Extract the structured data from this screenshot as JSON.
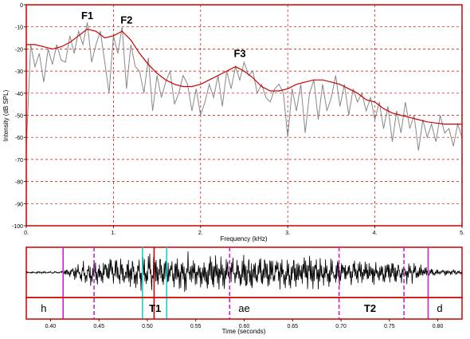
{
  "chart_data": [
    {
      "type": "line",
      "xlabel": "Frequency (kHz)",
      "ylabel": "Intensity (dB SPL)",
      "xlim": [
        0,
        5
      ],
      "ylim": [
        -100,
        0
      ],
      "x_ticks": [
        "0.",
        "1.",
        "2.",
        "3.",
        "4.",
        "5."
      ],
      "y_ticks": [
        "0",
        "-10",
        "-20",
        "-30",
        "-40",
        "-50",
        "-60",
        "-70",
        "-80",
        "-90",
        "-100"
      ],
      "grid": true,
      "colors": {
        "frame": "#cc0000",
        "grid": "#cc0000",
        "spectrum": "#888888",
        "envelope": "#cc0000"
      },
      "series": [
        {
          "role": "spectrum",
          "x": [
            0.0,
            0.05,
            0.1,
            0.15,
            0.2,
            0.25,
            0.3,
            0.35,
            0.4,
            0.45,
            0.5,
            0.55,
            0.6,
            0.65,
            0.7,
            0.75,
            0.8,
            0.85,
            0.9,
            0.95,
            1.0,
            1.05,
            1.1,
            1.15,
            1.2,
            1.25,
            1.3,
            1.35,
            1.4,
            1.45,
            1.5,
            1.55,
            1.6,
            1.65,
            1.7,
            1.75,
            1.8,
            1.85,
            1.9,
            1.95,
            2.0,
            2.05,
            2.1,
            2.15,
            2.2,
            2.25,
            2.3,
            2.35,
            2.4,
            2.45,
            2.5,
            2.55,
            2.6,
            2.65,
            2.7,
            2.75,
            2.8,
            2.85,
            2.9,
            2.95,
            3.0,
            3.05,
            3.1,
            3.15,
            3.2,
            3.25,
            3.3,
            3.35,
            3.4,
            3.45,
            3.5,
            3.55,
            3.6,
            3.65,
            3.7,
            3.75,
            3.8,
            3.85,
            3.9,
            3.95,
            4.0,
            4.05,
            4.1,
            4.15,
            4.2,
            4.25,
            4.3,
            4.35,
            4.4,
            4.45,
            4.5,
            4.55,
            4.6,
            4.65,
            4.7,
            4.75,
            4.8,
            4.85,
            4.9,
            4.95,
            5.0
          ],
          "values": [
            -65,
            -18,
            -28,
            -22,
            -35,
            -20,
            -27,
            -18,
            -25,
            -26,
            -14,
            -22,
            -12,
            -18,
            -8,
            -26,
            -18,
            -12,
            -26,
            -40,
            -14,
            -22,
            -10,
            -38,
            -18,
            -28,
            -30,
            -40,
            -24,
            -48,
            -32,
            -42,
            -35,
            -30,
            -45,
            -40,
            -32,
            -36,
            -48,
            -38,
            -50,
            -44,
            -36,
            -42,
            -32,
            -46,
            -30,
            -38,
            -28,
            -34,
            -26,
            -32,
            -30,
            -40,
            -36,
            -42,
            -44,
            -38,
            -36,
            -40,
            -60,
            -38,
            -48,
            -36,
            -58,
            -40,
            -34,
            -52,
            -36,
            -48,
            -42,
            -32,
            -46,
            -36,
            -50,
            -38,
            -44,
            -40,
            -48,
            -42,
            -52,
            -44,
            -56,
            -46,
            -62,
            -48,
            -58,
            -44,
            -56,
            -50,
            -66,
            -52,
            -60,
            -54,
            -62,
            -50,
            -58,
            -56,
            -64,
            -54,
            -60
          ]
        },
        {
          "role": "envelope",
          "x": [
            0.0,
            0.1,
            0.2,
            0.3,
            0.4,
            0.5,
            0.6,
            0.7,
            0.8,
            0.9,
            1.0,
            1.1,
            1.2,
            1.3,
            1.4,
            1.5,
            1.6,
            1.7,
            1.8,
            1.9,
            2.0,
            2.1,
            2.2,
            2.3,
            2.4,
            2.5,
            2.6,
            2.7,
            2.8,
            2.9,
            3.0,
            3.1,
            3.2,
            3.3,
            3.4,
            3.5,
            3.6,
            3.7,
            3.8,
            3.9,
            4.0,
            4.1,
            4.2,
            4.3,
            4.4,
            4.5,
            4.6,
            4.7,
            4.8,
            4.9,
            5.0
          ],
          "values": [
            -18,
            -18,
            -19,
            -20,
            -19,
            -17,
            -14,
            -11,
            -12,
            -15,
            -14,
            -12,
            -16,
            -22,
            -27,
            -31,
            -34,
            -36,
            -37,
            -37,
            -36,
            -34,
            -32,
            -30,
            -28,
            -30,
            -33,
            -37,
            -39,
            -39,
            -38,
            -36,
            -35,
            -34,
            -34,
            -35,
            -36,
            -38,
            -40,
            -43,
            -44,
            -47,
            -49,
            -50,
            -51,
            -52,
            -53,
            -53.5,
            -54,
            -54,
            -54
          ]
        }
      ],
      "annotations": [
        {
          "label": "F1",
          "x": 0.7,
          "y": -8
        },
        {
          "label": "F2",
          "x": 1.15,
          "y": -10
        },
        {
          "label": "F3",
          "x": 2.45,
          "y": -25
        }
      ]
    },
    {
      "type": "line",
      "xlabel": "Time (seconds)",
      "xlim": [
        0.375,
        0.825
      ],
      "x_ticks": [
        "0.40",
        "0.45",
        "0.50",
        "0.55",
        "0.60",
        "0.65",
        "0.70",
        "0.75",
        "0.80"
      ],
      "colors": {
        "frame": "#cc0000",
        "waveform": "#000000"
      },
      "segments": [
        {
          "label": "h",
          "x": 0.393
        },
        {
          "label": "T1",
          "x": 0.508
        },
        {
          "label": "ae",
          "x": 0.6
        },
        {
          "label": "T2",
          "x": 0.73
        },
        {
          "label": "d",
          "x": 0.802
        }
      ],
      "markers": [
        {
          "t": 0.413,
          "color": "#cc22cc",
          "style": "solid"
        },
        {
          "t": 0.445,
          "color": "#cc22cc",
          "style": "dashed"
        },
        {
          "t": 0.495,
          "color": "#22cccc",
          "style": "solid"
        },
        {
          "t": 0.507,
          "color": "#cc0000",
          "style": "solid"
        },
        {
          "t": 0.52,
          "color": "#22cccc",
          "style": "solid"
        },
        {
          "t": 0.585,
          "color": "#cc22cc",
          "style": "dashed"
        },
        {
          "t": 0.698,
          "color": "#cc22cc",
          "style": "dashed"
        },
        {
          "t": 0.765,
          "color": "#cc22cc",
          "style": "dashed"
        },
        {
          "t": 0.79,
          "color": "#cc22cc",
          "style": "solid"
        }
      ],
      "waveform_envelope": {
        "t": [
          0.375,
          0.41,
          0.415,
          0.43,
          0.45,
          0.5,
          0.55,
          0.6,
          0.65,
          0.7,
          0.75,
          0.78,
          0.79,
          0.825
        ],
        "amp": [
          0.05,
          0.06,
          0.2,
          0.55,
          0.8,
          0.95,
          0.95,
          0.9,
          0.85,
          0.75,
          0.6,
          0.5,
          0.2,
          0.12
        ]
      }
    }
  ]
}
